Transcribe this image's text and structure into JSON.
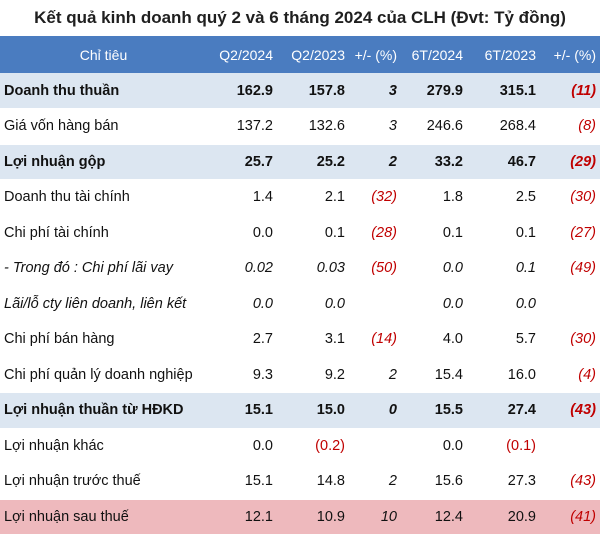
{
  "title": "Kết quả kinh doanh quý 2 và 6 tháng 2024 của CLH (Đvt: Tỷ đồng)",
  "colors": {
    "header_bg": "#4a7cc0",
    "shade_bg": "#dce6f1",
    "highlight_bg": "#eeb9bd",
    "negative": "#c00000"
  },
  "headers": [
    "Chỉ tiêu",
    "Q2/2024",
    "Q2/2023",
    "+/- (%)",
    "6T/2024",
    "6T/2023",
    "+/- (%)"
  ],
  "rows": [
    {
      "label": "Doanh thu thuần",
      "cells": [
        "162.9",
        "157.8",
        "3",
        "279.9",
        "315.1",
        "(11)"
      ]
    },
    {
      "label": "Giá vốn hàng bán",
      "cells": [
        "137.2",
        "132.6",
        "3",
        "246.6",
        "268.4",
        "(8)"
      ]
    },
    {
      "label": "Lợi nhuận gộp",
      "cells": [
        "25.7",
        "25.2",
        "2",
        "33.2",
        "46.7",
        "(29)"
      ]
    },
    {
      "label": "Doanh thu tài chính",
      "cells": [
        "1.4",
        "2.1",
        "(32)",
        "1.8",
        "2.5",
        "(30)"
      ]
    },
    {
      "label": "Chi phí tài chính",
      "cells": [
        "0.0",
        "0.1",
        "(28)",
        "0.1",
        "0.1",
        "(27)"
      ]
    },
    {
      "label": "- Trong đó : Chi phí lãi vay",
      "cells": [
        "0.02",
        "0.03",
        "(50)",
        "0.0",
        "0.1",
        "(49)"
      ]
    },
    {
      "label": "Lãi/lỗ cty liên doanh, liên kết",
      "cells": [
        "0.0",
        "0.0",
        "",
        "0.0",
        "0.0",
        ""
      ]
    },
    {
      "label": "Chi phí bán hàng",
      "cells": [
        "2.7",
        "3.1",
        "(14)",
        "4.0",
        "5.7",
        "(30)"
      ]
    },
    {
      "label": "Chi phí quản lý doanh nghiệp",
      "cells": [
        "9.3",
        "9.2",
        "2",
        "15.4",
        "16.0",
        "(4)"
      ]
    },
    {
      "label": "Lợi nhuận thuần từ HĐKD",
      "cells": [
        "15.1",
        "15.0",
        "0",
        "15.5",
        "27.4",
        "(43)"
      ]
    },
    {
      "label": "Lợi nhuận khác",
      "cells": [
        "0.0",
        "(0.2)",
        "",
        "0.0",
        "(0.1)",
        ""
      ]
    },
    {
      "label": "Lợi nhuận trước thuế",
      "cells": [
        "15.1",
        "14.8",
        "2",
        "15.6",
        "27.3",
        "(43)"
      ]
    },
    {
      "label": "Lợi nhuận sau thuế",
      "cells": [
        "12.1",
        "10.9",
        "10",
        "12.4",
        "20.9",
        "(41)"
      ]
    }
  ]
}
